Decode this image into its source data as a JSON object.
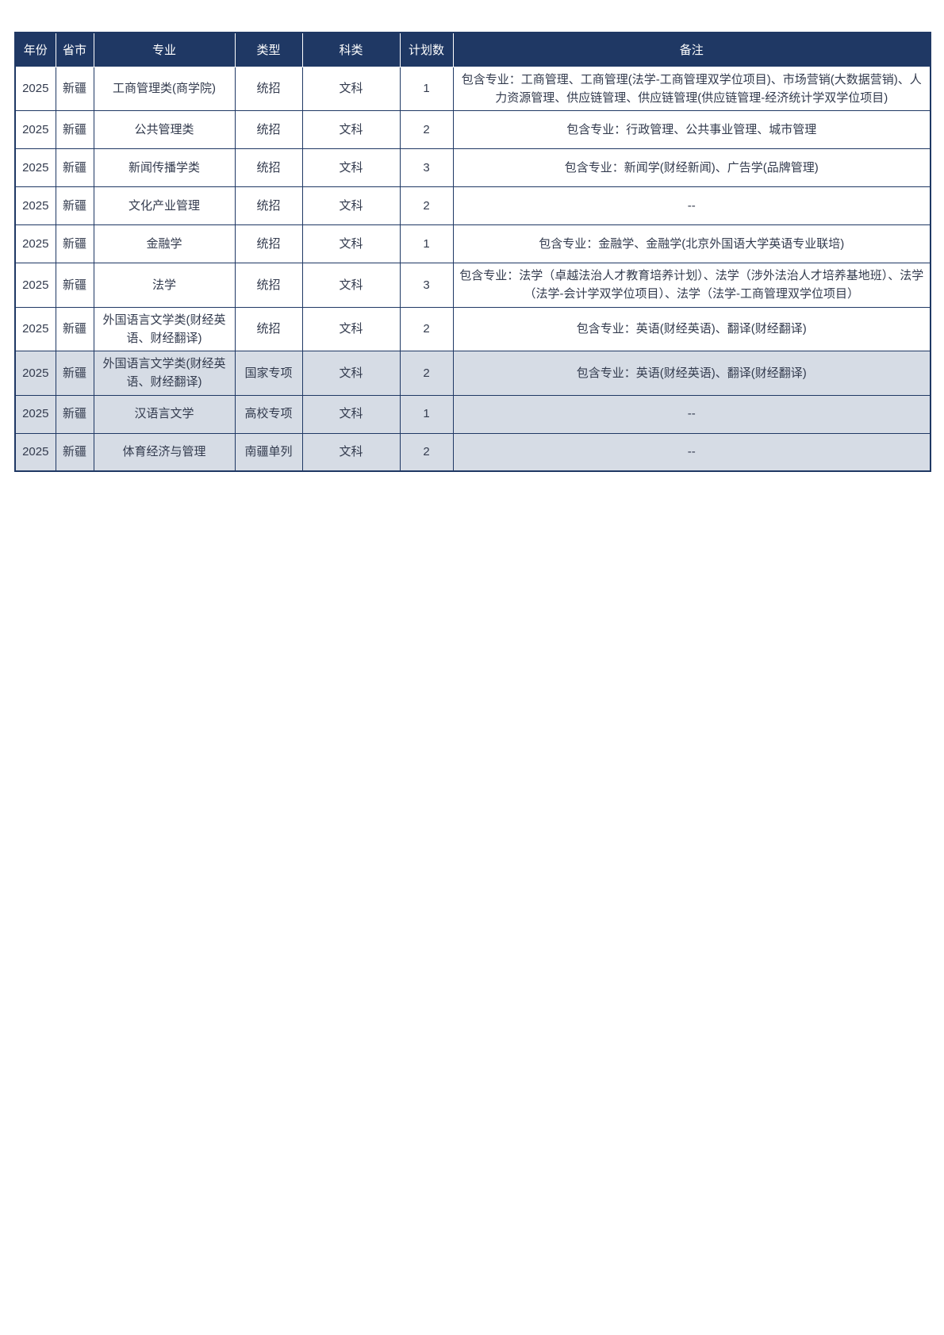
{
  "colors": {
    "header_bg": "#1f3864",
    "header_text": "#ffffff",
    "border": "#1f3864",
    "shaded_row_bg": "#d6dce5",
    "body_text": "#333b4e",
    "page_bg": "#ffffff"
  },
  "table": {
    "columns": [
      "年份",
      "省市",
      "专业",
      "类型",
      "科类",
      "计划数",
      "备注"
    ],
    "rows": [
      {
        "year": "2025",
        "province": "新疆",
        "major": "工商管理类(商学院)",
        "type": "统招",
        "subject": "文科",
        "plan": "1",
        "remark": "包含专业：工商管理、工商管理(法学-工商管理双学位项目)、市场营销(大数据营销)、人力资源管理、供应链管理、供应链管理(供应链管理-经济统计学双学位项目)",
        "shaded": false
      },
      {
        "year": "2025",
        "province": "新疆",
        "major": "公共管理类",
        "type": "统招",
        "subject": "文科",
        "plan": "2",
        "remark": "包含专业：行政管理、公共事业管理、城市管理",
        "shaded": false
      },
      {
        "year": "2025",
        "province": "新疆",
        "major": "新闻传播学类",
        "type": "统招",
        "subject": "文科",
        "plan": "3",
        "remark": "包含专业：新闻学(财经新闻)、广告学(品牌管理)",
        "shaded": false
      },
      {
        "year": "2025",
        "province": "新疆",
        "major": "文化产业管理",
        "type": "统招",
        "subject": "文科",
        "plan": "2",
        "remark": "--",
        "shaded": false
      },
      {
        "year": "2025",
        "province": "新疆",
        "major": "金融学",
        "type": "统招",
        "subject": "文科",
        "plan": "1",
        "remark": "包含专业：金融学、金融学(北京外国语大学英语专业联培)",
        "shaded": false
      },
      {
        "year": "2025",
        "province": "新疆",
        "major": "法学",
        "type": "统招",
        "subject": "文科",
        "plan": "3",
        "remark": "包含专业：法学（卓越法治人才教育培养计划）、法学（涉外法治人才培养基地班）、法学（法学-会计学双学位项目）、法学（法学-工商管理双学位项目）",
        "shaded": false
      },
      {
        "year": "2025",
        "province": "新疆",
        "major": "外国语言文学类(财经英语、财经翻译)",
        "type": "统招",
        "subject": "文科",
        "plan": "2",
        "remark": "包含专业：英语(财经英语)、翻译(财经翻译)",
        "shaded": false
      },
      {
        "year": "2025",
        "province": "新疆",
        "major": "外国语言文学类(财经英语、财经翻译)",
        "type": "国家专项",
        "subject": "文科",
        "plan": "2",
        "remark": "包含专业：英语(财经英语)、翻译(财经翻译)",
        "shaded": true
      },
      {
        "year": "2025",
        "province": "新疆",
        "major": "汉语言文学",
        "type": "高校专项",
        "subject": "文科",
        "plan": "1",
        "remark": "--",
        "shaded": true
      },
      {
        "year": "2025",
        "province": "新疆",
        "major": "体育经济与管理",
        "type": "南疆单列",
        "subject": "文科",
        "plan": "2",
        "remark": "--",
        "shaded": true
      }
    ]
  }
}
